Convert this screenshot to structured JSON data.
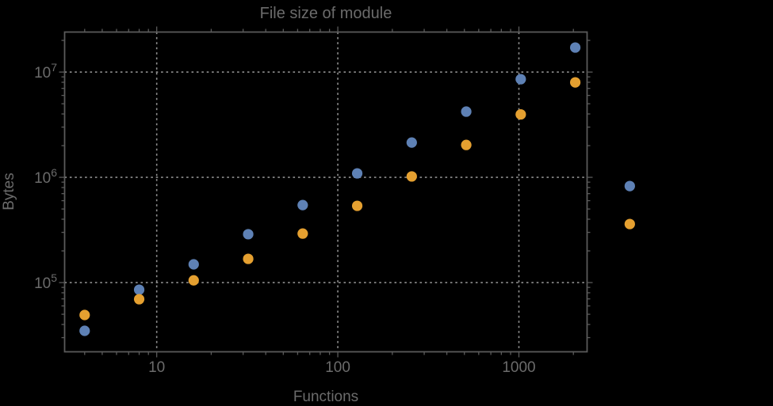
{
  "window": {
    "background": "#000000"
  },
  "chart_data": {
    "type": "scatter",
    "title": "File size of module",
    "xlabel": "Functions",
    "ylabel": "Bytes",
    "x_scale": "log",
    "y_scale": "log",
    "xlim": [
      3.1,
      2380
    ],
    "ylim": [
      22000,
      24000000
    ],
    "grid": "dotted-major-gridlines",
    "legend": "none",
    "frame": true,
    "clip_points": false,
    "marker_radius": 6.6,
    "colors": {
      "grid": "#8f8f8f",
      "frame": "#5a5a5a",
      "labels": "#6b6b6b",
      "background": "#000000",
      "series_blue": "#5e81b5",
      "series_orange": "#e5a030"
    },
    "x_ticks": [
      {
        "value": 10,
        "label": "10"
      },
      {
        "value": 100,
        "label": "100"
      },
      {
        "value": 1000,
        "label": "1000"
      }
    ],
    "y_ticks": [
      {
        "value": 100000,
        "base": "10",
        "exp": "5"
      },
      {
        "value": 1000000,
        "base": "10",
        "exp": "6"
      },
      {
        "value": 10000000,
        "base": "10",
        "exp": "7"
      }
    ],
    "series": [
      {
        "name": "blue",
        "color": "#5e81b5",
        "x": [
          4,
          8,
          16,
          32,
          64,
          128,
          256,
          512,
          1024,
          2048,
          4096
        ],
        "y": [
          34800,
          85500,
          149000,
          288000,
          545000,
          1090000,
          2140000,
          4210000,
          8560000,
          17100000,
          826000
        ]
      },
      {
        "name": "orange",
        "color": "#e5a030",
        "x": [
          4,
          8,
          16,
          32,
          64,
          128,
          256,
          512,
          1024,
          2048,
          4096
        ],
        "y": [
          49200,
          69500,
          105000,
          168000,
          292000,
          536000,
          1020000,
          2030000,
          3960000,
          7980000,
          360000
        ]
      }
    ]
  }
}
